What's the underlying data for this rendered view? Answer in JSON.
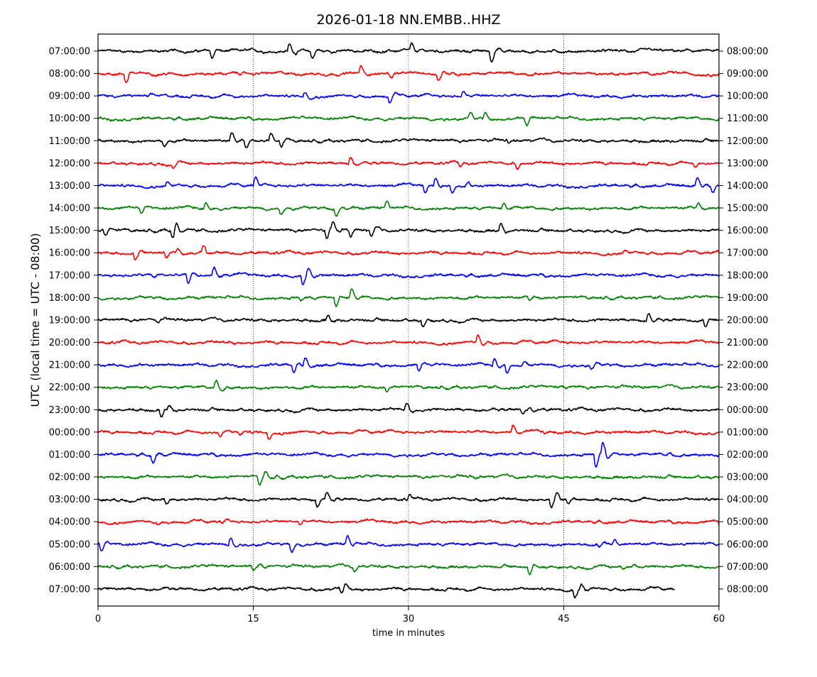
{
  "chart_data": {
    "type": "line",
    "title": "2026-01-18 NN.EMBB..HHZ",
    "xlabel": "time in minutes",
    "ylabel": "UTC (local time = UTC - 08:00)",
    "xlim": [
      0,
      60
    ],
    "x_ticks": [
      "0",
      "15",
      "30",
      "45",
      "60"
    ],
    "x_tick_values": [
      0,
      15,
      30,
      45,
      60
    ],
    "grid": "vertical dotted at 15, 30, 45",
    "row_colors": [
      "#000000",
      "#ff0000",
      "#0000ff",
      "#008000"
    ],
    "left_labels": [
      "07:00:00",
      "08:00:00",
      "09:00:00",
      "10:00:00",
      "11:00:00",
      "12:00:00",
      "13:00:00",
      "14:00:00",
      "15:00:00",
      "16:00:00",
      "17:00:00",
      "18:00:00",
      "19:00:00",
      "20:00:00",
      "21:00:00",
      "22:00:00",
      "23:00:00",
      "00:00:00",
      "01:00:00",
      "02:00:00",
      "03:00:00",
      "04:00:00",
      "05:00:00",
      "06:00:00",
      "07:00:00"
    ],
    "right_labels": [
      "08:00:00",
      "09:00:00",
      "10:00:00",
      "11:00:00",
      "12:00:00",
      "13:00:00",
      "14:00:00",
      "15:00:00",
      "16:00:00",
      "17:00:00",
      "18:00:00",
      "19:00:00",
      "20:00:00",
      "21:00:00",
      "22:00:00",
      "23:00:00",
      "00:00:00",
      "01:00:00",
      "02:00:00",
      "03:00:00",
      "04:00:00",
      "05:00:00",
      "06:00:00",
      "07:00:00",
      "08:00:00"
    ],
    "last_row_end_minute": 55.7,
    "events_note": "per row: [minute, relative amplitude (row spacing = 1, positive up)]",
    "events": [
      [
        [
          10.8,
          -0.5
        ],
        [
          18.3,
          0.5
        ],
        [
          20.5,
          -0.5
        ],
        [
          30.1,
          0.4
        ],
        [
          37.8,
          -0.7
        ],
        [
          38.6,
          0.15
        ]
      ],
      [
        [
          2.5,
          -0.6
        ],
        [
          25.2,
          0.5
        ],
        [
          28.1,
          -0.25
        ],
        [
          32.7,
          -0.45
        ],
        [
          34,
          0.2
        ]
      ],
      [
        [
          19.8,
          0.3
        ],
        [
          28,
          -0.45
        ],
        [
          35.1,
          0.3
        ],
        [
          4.5,
          -0.1
        ],
        [
          13,
          -0.1
        ]
      ],
      [
        [
          35.8,
          0.35
        ],
        [
          37.2,
          0.4
        ],
        [
          41.2,
          -0.45
        ],
        [
          19.6,
          0.15
        ]
      ],
      [
        [
          6.2,
          -0.4
        ],
        [
          12.7,
          0.5
        ],
        [
          14.1,
          -0.5
        ],
        [
          16.5,
          0.5
        ],
        [
          17.5,
          -0.5
        ],
        [
          39.5,
          -0.2
        ]
      ],
      [
        [
          7.1,
          -0.3
        ],
        [
          24.2,
          0.5
        ],
        [
          34.8,
          -0.25
        ],
        [
          40.3,
          -0.3
        ],
        [
          57.5,
          -0.2
        ]
      ],
      [
        [
          15,
          0.6
        ],
        [
          31.4,
          -0.5
        ],
        [
          32.4,
          0.6
        ],
        [
          34,
          -0.45
        ],
        [
          35.5,
          0.2
        ],
        [
          57.7,
          0.5
        ],
        [
          59.2,
          -0.4
        ],
        [
          6.5,
          0.3
        ]
      ],
      [
        [
          10.2,
          0.5
        ],
        [
          17.5,
          -0.4
        ],
        [
          22.8,
          -0.5
        ],
        [
          27.7,
          0.5
        ],
        [
          39,
          0.3
        ],
        [
          4,
          -0.4
        ],
        [
          57.8,
          0.3
        ]
      ],
      [
        [
          0.5,
          -0.4
        ],
        [
          7,
          -0.5
        ],
        [
          7.3,
          0.5
        ],
        [
          21.9,
          -0.6
        ],
        [
          22.5,
          0.4
        ],
        [
          24.2,
          -0.4
        ],
        [
          26.2,
          -0.5
        ],
        [
          38.7,
          0.5
        ]
      ],
      [
        [
          3.4,
          -0.5
        ],
        [
          6.4,
          -0.4
        ],
        [
          10,
          0.5
        ],
        [
          50.7,
          0.2
        ],
        [
          7.5,
          0.3
        ]
      ],
      [
        [
          8.5,
          -0.6
        ],
        [
          11,
          0.55
        ],
        [
          19.6,
          -0.7
        ],
        [
          20.1,
          0.35
        ],
        [
          5.2,
          -0.2
        ]
      ],
      [
        [
          19.4,
          -0.25
        ],
        [
          22.8,
          -0.6
        ],
        [
          24.3,
          0.55
        ],
        [
          41.5,
          -0.2
        ]
      ],
      [
        [
          22,
          0.35
        ],
        [
          31.2,
          -0.5
        ],
        [
          53,
          0.5
        ],
        [
          58.5,
          -0.5
        ],
        [
          5.5,
          -0.2
        ]
      ],
      [
        [
          36.5,
          0.5
        ],
        [
          12.5,
          0.1
        ]
      ],
      [
        [
          18.7,
          -0.55
        ],
        [
          19.8,
          0.5
        ],
        [
          30.8,
          -0.5
        ],
        [
          38.1,
          0.5
        ],
        [
          39.3,
          -0.6
        ],
        [
          47.5,
          -0.3
        ],
        [
          41,
          0.2
        ]
      ],
      [
        [
          11.2,
          0.55
        ],
        [
          27.7,
          -0.3
        ],
        [
          45,
          -0.1
        ]
      ],
      [
        [
          5.9,
          -0.5
        ],
        [
          6.7,
          0.3
        ],
        [
          29.6,
          0.5
        ],
        [
          40.8,
          -0.25
        ],
        [
          41.5,
          0.2
        ]
      ],
      [
        [
          11.6,
          -0.3
        ],
        [
          13.5,
          -0.2
        ],
        [
          16.3,
          -0.45
        ],
        [
          39.9,
          0.5
        ],
        [
          43,
          -0.15
        ]
      ],
      [
        [
          5.1,
          -0.55
        ],
        [
          47.9,
          -0.9
        ],
        [
          48.6,
          0.7
        ],
        [
          55,
          0.15
        ]
      ],
      [
        [
          15.4,
          -0.5
        ],
        [
          16,
          0.3
        ],
        [
          36.2,
          -0.15
        ]
      ],
      [
        [
          6.4,
          -0.3
        ],
        [
          21,
          -0.5
        ],
        [
          21.9,
          0.45
        ],
        [
          29.9,
          0.3
        ],
        [
          43.6,
          -0.6
        ],
        [
          44.1,
          0.3
        ],
        [
          45.2,
          -0.25
        ]
      ],
      [
        [
          5.6,
          -0.25
        ],
        [
          19.3,
          -0.2
        ],
        [
          59.9,
          -0.3
        ],
        [
          11.8,
          -0.2
        ]
      ],
      [
        [
          0.1,
          -0.5
        ],
        [
          12.6,
          0.6
        ],
        [
          18.5,
          -0.5
        ],
        [
          23.9,
          0.55
        ],
        [
          48.2,
          -0.2
        ],
        [
          49.7,
          0.3
        ]
      ],
      [
        [
          14.8,
          -0.3
        ],
        [
          15.4,
          0.2
        ],
        [
          24.6,
          -0.3
        ],
        [
          41.5,
          -0.55
        ],
        [
          51.6,
          0.2
        ],
        [
          50.5,
          -0.15
        ]
      ],
      [
        [
          23.3,
          -0.3
        ],
        [
          23.7,
          0.3
        ],
        [
          45.9,
          -0.5
        ],
        [
          46.5,
          0.3
        ],
        [
          6.5,
          0.1
        ]
      ]
    ]
  }
}
